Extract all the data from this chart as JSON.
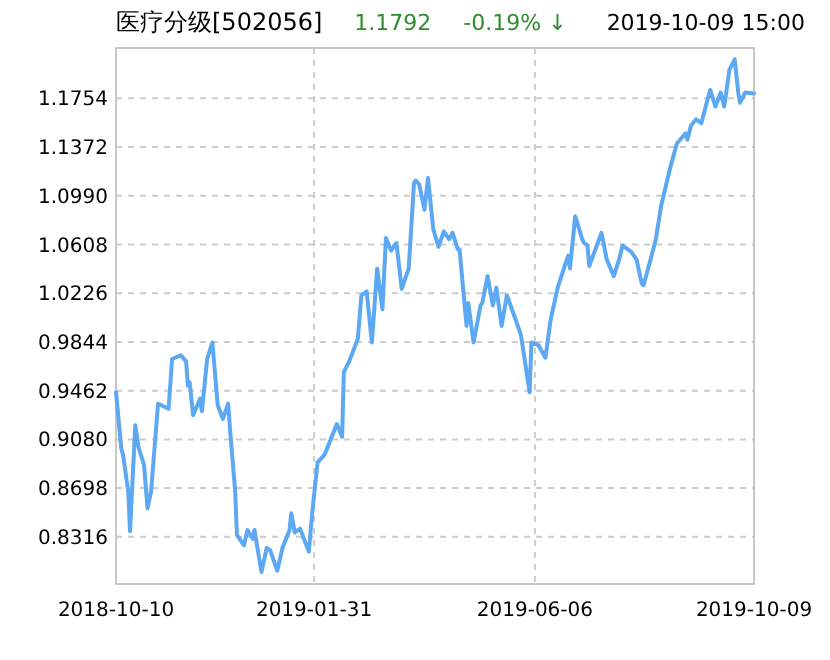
{
  "chart_data": {
    "type": "line",
    "title": "医疗分级[502056]",
    "annotations": [
      "1.1792",
      "-0.19% ↓",
      "2019-10-09 15:00"
    ],
    "x": [
      "2018-10-10",
      "2018-10-13",
      "2018-10-14",
      "2018-10-17",
      "2018-10-18",
      "2018-10-21",
      "2018-10-23",
      "2018-10-26",
      "2018-10-28",
      "2018-10-30",
      "2018-11-03",
      "2018-11-09",
      "2018-11-11",
      "2018-11-16",
      "2018-11-19",
      "2018-11-20",
      "2018-11-21",
      "2018-11-23",
      "2018-11-27",
      "2018-11-28",
      "2018-12-01",
      "2018-12-04",
      "2018-12-07",
      "2018-12-10",
      "2018-12-13",
      "2018-12-14",
      "2018-12-17",
      "2018-12-18",
      "2018-12-22",
      "2018-12-24",
      "2018-12-27",
      "2018-12-28",
      "2019-01-01",
      "2019-01-04",
      "2019-01-06",
      "2019-01-10",
      "2019-01-13",
      "2019-01-17",
      "2019-01-18",
      "2019-01-20",
      "2019-01-23",
      "2019-01-28",
      "2019-01-30",
      "2019-02-02",
      "2019-02-06",
      "2019-02-13",
      "2019-02-16",
      "2019-02-17",
      "2019-02-20",
      "2019-02-25",
      "2019-02-27",
      "2019-03-02",
      "2019-03-05",
      "2019-03-08",
      "2019-03-11",
      "2019-03-13",
      "2019-03-16",
      "2019-03-19",
      "2019-03-22",
      "2019-03-26",
      "2019-03-29",
      "2019-03-30",
      "2019-04-01",
      "2019-04-04",
      "2019-04-06",
      "2019-04-09",
      "2019-04-12",
      "2019-04-15",
      "2019-04-18",
      "2019-04-20",
      "2019-04-23",
      "2019-04-24",
      "2019-04-28",
      "2019-04-29",
      "2019-05-02",
      "2019-05-06",
      "2019-05-07",
      "2019-05-10",
      "2019-05-13",
      "2019-05-15",
      "2019-05-18",
      "2019-05-21",
      "2019-05-26",
      "2019-05-29",
      "2019-06-03",
      "2019-06-04",
      "2019-06-08",
      "2019-06-12",
      "2019-06-15",
      "2019-06-19",
      "2019-06-23",
      "2019-06-25",
      "2019-06-26",
      "2019-06-29",
      "2019-07-03",
      "2019-07-04",
      "2019-07-06",
      "2019-07-07",
      "2019-07-14",
      "2019-07-17",
      "2019-07-21",
      "2019-07-24",
      "2019-07-26",
      "2019-07-31",
      "2019-08-03",
      "2019-08-06",
      "2019-08-07",
      "2019-08-11",
      "2019-08-14",
      "2019-08-17",
      "2019-08-22",
      "2019-08-23",
      "2019-08-26",
      "2019-08-31",
      "2019-09-01",
      "2019-09-03",
      "2019-09-06",
      "2019-09-09",
      "2019-09-12",
      "2019-09-14",
      "2019-09-17",
      "2019-09-20",
      "2019-09-22",
      "2019-09-25",
      "2019-09-28",
      "2019-09-30",
      "2019-10-01",
      "2019-10-04",
      "2019-10-09"
    ],
    "series": [
      {
        "color": "#5ca8f2",
        "values": [
          0.945,
          0.901,
          0.896,
          0.867,
          0.836,
          0.919,
          0.901,
          0.888,
          0.854,
          0.867,
          0.936,
          0.932,
          0.971,
          0.974,
          0.969,
          0.95,
          0.953,
          0.927,
          0.94,
          0.93,
          0.971,
          0.984,
          0.935,
          0.924,
          0.936,
          0.917,
          0.867,
          0.833,
          0.825,
          0.837,
          0.83,
          0.837,
          0.804,
          0.823,
          0.821,
          0.805,
          0.823,
          0.837,
          0.85,
          0.835,
          0.838,
          0.82,
          0.851,
          0.89,
          0.896,
          0.92,
          0.91,
          0.961,
          0.969,
          0.987,
          1.021,
          1.024,
          0.984,
          1.042,
          1.01,
          1.066,
          1.056,
          1.062,
          1.026,
          1.042,
          1.109,
          1.111,
          1.108,
          1.088,
          1.113,
          1.073,
          1.059,
          1.071,
          1.065,
          1.07,
          1.057,
          1.057,
          0.997,
          1.015,
          0.984,
          1.013,
          1.015,
          1.036,
          1.013,
          1.027,
          0.997,
          1.021,
          1.002,
          0.99,
          0.945,
          0.984,
          0.982,
          0.972,
          1.002,
          1.027,
          1.044,
          1.052,
          1.042,
          1.083,
          1.065,
          1.062,
          1.06,
          1.044,
          1.07,
          1.049,
          1.036,
          1.049,
          1.06,
          1.055,
          1.049,
          1.03,
          1.029,
          1.049,
          1.065,
          1.091,
          1.12,
          1.125,
          1.14,
          1.148,
          1.143,
          1.154,
          1.159,
          1.156,
          1.172,
          1.182,
          1.169,
          1.18,
          1.169,
          1.198,
          1.206,
          1.18,
          1.172,
          1.18,
          1.1792
        ]
      }
    ],
    "xlim": [
      "2018-10-10",
      "2019-10-09"
    ],
    "xticks": [
      "2018-10-10",
      "2019-01-31",
      "2019-06-06",
      "2019-10-09"
    ],
    "ylim": [
      0.7946,
      1.2149
    ],
    "yticks": [
      0.8316,
      0.8698,
      {
        "value": 0.908,
        "label": "0.9080"
      },
      0.9462,
      0.9844,
      1.0226,
      1.0608,
      {
        "value": 1.099,
        "label": "1.0990"
      },
      1.1372,
      1.1754
    ],
    "grid": true
  }
}
